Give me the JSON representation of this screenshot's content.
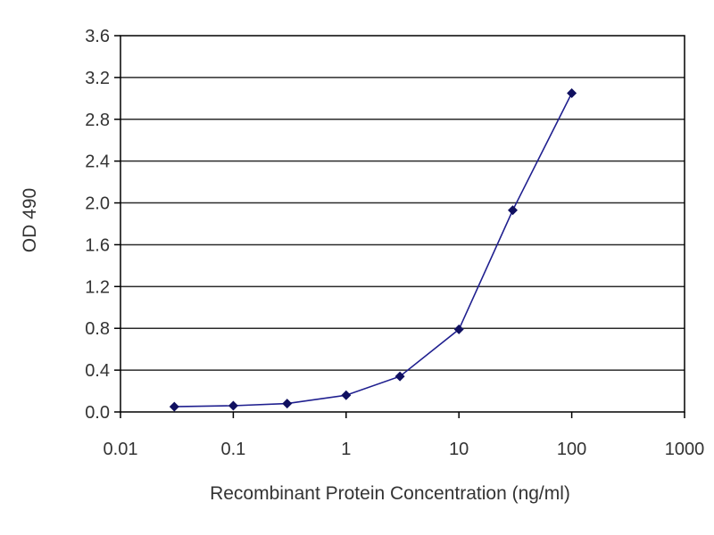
{
  "chart_data": {
    "type": "line",
    "title": "",
    "xlabel": "Recombinant Protein Concentration (ng/ml)",
    "ylabel": "OD 490",
    "x_scale": "log",
    "xlim": [
      0.01,
      1000
    ],
    "ylim": [
      0.0,
      3.6
    ],
    "x_ticks": [
      "0.01",
      "0.1",
      "1",
      "10",
      "100",
      "1000"
    ],
    "y_ticks": [
      "0.0",
      "0.4",
      "0.8",
      "1.2",
      "1.6",
      "2.0",
      "2.4",
      "2.8",
      "3.2",
      "3.6"
    ],
    "grid": "horizontal",
    "legend": "none",
    "series": [
      {
        "x": [
          0.03,
          0.1,
          0.3,
          1,
          3,
          10,
          30,
          100
        ],
        "y": [
          0.05,
          0.06,
          0.08,
          0.16,
          0.34,
          0.79,
          1.93,
          3.05
        ],
        "color": "#1f1f8f",
        "marker": "diamond"
      }
    ]
  }
}
